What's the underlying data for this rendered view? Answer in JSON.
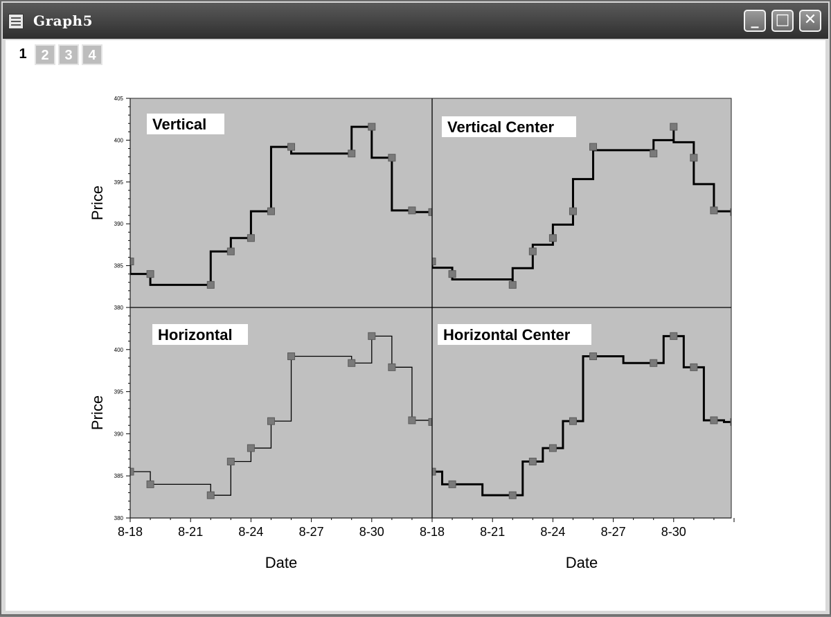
{
  "window": {
    "title": "Graph5",
    "buttons": [
      "_",
      "□",
      "✕"
    ],
    "layer_tabs": [
      "1",
      "2",
      "3",
      "4"
    ],
    "active_layer": "1"
  },
  "chart_data": [
    {
      "type": "line",
      "step": "vertical",
      "title": "Vertical",
      "xlabel": "",
      "ylabel": "Price",
      "x_ticks": [
        "8-18",
        "8-21",
        "8-24",
        "8-27",
        "8-30"
      ],
      "y_ticks": [
        "380",
        "385",
        "390",
        "395",
        "400",
        "405"
      ],
      "ylim": [
        380,
        405
      ],
      "x": [
        "8-18",
        "8-19",
        "8-22",
        "8-23",
        "8-24",
        "8-25",
        "8-26",
        "8-29",
        "8-30",
        "8-31",
        "9-1",
        "9-2"
      ],
      "y": [
        385.5,
        384.0,
        382.7,
        386.7,
        388.3,
        391.5,
        399.2,
        398.4,
        401.6,
        397.9,
        391.6,
        391.4
      ]
    },
    {
      "type": "line",
      "step": "vertical-center",
      "title": "Vertical Center",
      "xlabel": "",
      "ylabel": "",
      "x_ticks": [],
      "y_ticks": [],
      "ylim": [
        380,
        405
      ],
      "x": [
        "8-18",
        "8-19",
        "8-22",
        "8-23",
        "8-24",
        "8-25",
        "8-26",
        "8-29",
        "8-30",
        "8-31",
        "9-1",
        "9-2"
      ],
      "y": [
        385.5,
        384.0,
        382.7,
        386.7,
        388.3,
        391.5,
        399.2,
        398.4,
        401.6,
        397.9,
        391.6,
        391.4
      ]
    },
    {
      "type": "line",
      "step": "horizontal",
      "title": "Horizontal",
      "xlabel": "Date",
      "ylabel": "Price",
      "x_ticks": [
        "8-18",
        "8-21",
        "8-24",
        "8-27",
        "8-30"
      ],
      "y_ticks": [
        "380",
        "385",
        "390",
        "395",
        "400"
      ],
      "ylim": [
        380,
        405
      ],
      "x": [
        "8-18",
        "8-19",
        "8-22",
        "8-23",
        "8-24",
        "8-25",
        "8-26",
        "8-29",
        "8-30",
        "8-31",
        "9-1",
        "9-2"
      ],
      "y": [
        385.5,
        384.0,
        382.7,
        386.7,
        388.3,
        391.5,
        399.2,
        398.4,
        401.6,
        397.9,
        391.6,
        391.4
      ]
    },
    {
      "type": "line",
      "step": "horizontal-center",
      "title": "Horizontal Center",
      "xlabel": "Date",
      "ylabel": "",
      "x_ticks": [
        "8-18",
        "8-21",
        "8-24",
        "8-27",
        "8-30"
      ],
      "y_ticks": [],
      "ylim": [
        380,
        405
      ],
      "x": [
        "8-18",
        "8-19",
        "8-22",
        "8-23",
        "8-24",
        "8-25",
        "8-26",
        "8-29",
        "8-30",
        "8-31",
        "9-1",
        "9-2"
      ],
      "y": [
        385.5,
        384.0,
        382.7,
        386.7,
        388.3,
        391.5,
        399.2,
        398.4,
        401.6,
        397.9,
        391.6,
        391.4
      ]
    }
  ],
  "colors": {
    "plot_background": "#c0c0c0",
    "line": "#000000",
    "marker": "#7a7a7a",
    "marker_edge": "#5a5a5a"
  }
}
